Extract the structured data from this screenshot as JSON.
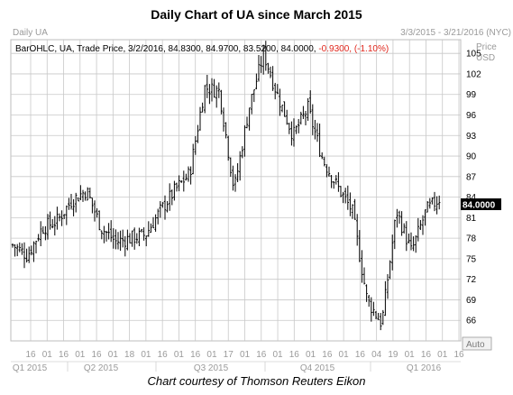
{
  "title": "Daily Chart of UA since March 2015",
  "panel_label": "Daily UA",
  "date_range": "3/3/2015 - 3/21/2016 (NYC)",
  "legend": {
    "prefix": "BarOHLC, UA, Trade Price, 3/2/2016, 84.8300, 84.9700, 83.5200, 84.0000,",
    "change": "-0.9300, (-1.10%)"
  },
  "axis_header": {
    "line1": "Price",
    "line2": "USD"
  },
  "last_price_label": "84.0000",
  "auto_button": "Auto",
  "caption": "Chart courtesy of Thomson Reuters Eikon",
  "colors": {
    "bars": "#000000",
    "grid": "#c8c8c8",
    "change": "#e0261c",
    "muted": "#9a9a9a",
    "price_tag_bg": "#000000"
  },
  "chart_data": {
    "type": "ohlc",
    "ylim": [
      63,
      107
    ],
    "y_ticks": [
      66,
      69,
      72,
      75,
      78,
      81,
      84,
      87,
      90,
      93,
      96,
      99,
      102,
      105
    ],
    "x_tick_labels": [
      "16",
      "01",
      "16",
      "01",
      "16",
      "01",
      "18",
      "01",
      "16",
      "01",
      "16",
      "01",
      "17",
      "01",
      "16",
      "01",
      "16",
      "01",
      "16",
      "01",
      "16",
      "04",
      "19",
      "01",
      "16",
      "01",
      "16"
    ],
    "quarter_labels": [
      "Q1 2015",
      "Q2 2015",
      "Q3 2015",
      "Q4 2015",
      "Q1 2016"
    ],
    "last_close": 84.0,
    "closes_by_gridline": [
      77,
      75.5,
      79.5,
      80.5,
      83.5,
      85,
      79.5,
      77.5,
      78,
      78.5,
      82,
      85,
      87.5,
      100,
      99.5,
      85,
      97,
      105,
      98.5,
      93,
      97,
      89.5,
      85.5,
      82,
      69,
      65.5,
      82,
      76,
      82,
      84
    ]
  }
}
